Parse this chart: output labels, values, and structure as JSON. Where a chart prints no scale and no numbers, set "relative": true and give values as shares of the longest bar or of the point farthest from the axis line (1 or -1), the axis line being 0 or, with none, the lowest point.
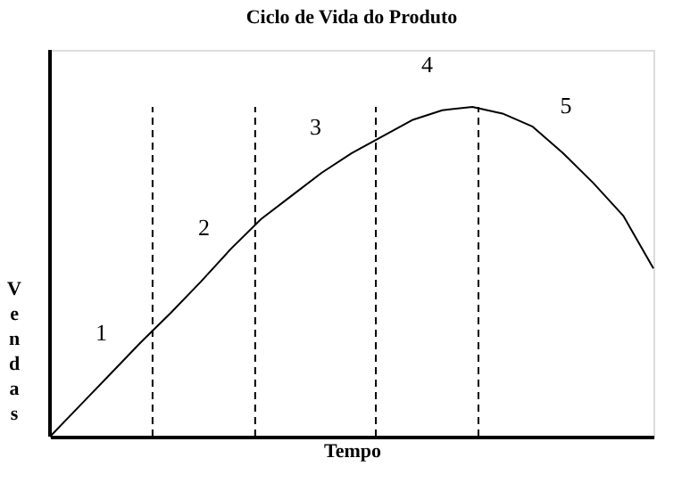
{
  "chart_data": {
    "type": "line",
    "title": "Ciclo de Vida do Produto",
    "xlabel": "Tempo",
    "ylabel": "Vendas",
    "relative": true,
    "tick_labels": false,
    "grid": false,
    "marker": "none",
    "line_style": "solid",
    "categories": [
      null,
      null,
      null,
      null,
      null,
      null,
      null,
      null,
      null,
      null,
      null,
      null,
      null,
      null,
      null,
      null,
      null,
      null,
      null,
      null,
      null
    ],
    "series": [
      {
        "color": "#000000",
        "values": [
          0,
          0.095,
          0.19,
          0.285,
          0.375,
          0.47,
          0.57,
          0.66,
          0.73,
          0.8,
          0.86,
          0.91,
          0.96,
          0.99,
          1,
          0.98,
          0.94,
          0.86,
          0.77,
          0.67,
          0.51
        ]
      }
    ],
    "annotations": [
      "1",
      "2",
      "3",
      "4",
      "5"
    ]
  }
}
